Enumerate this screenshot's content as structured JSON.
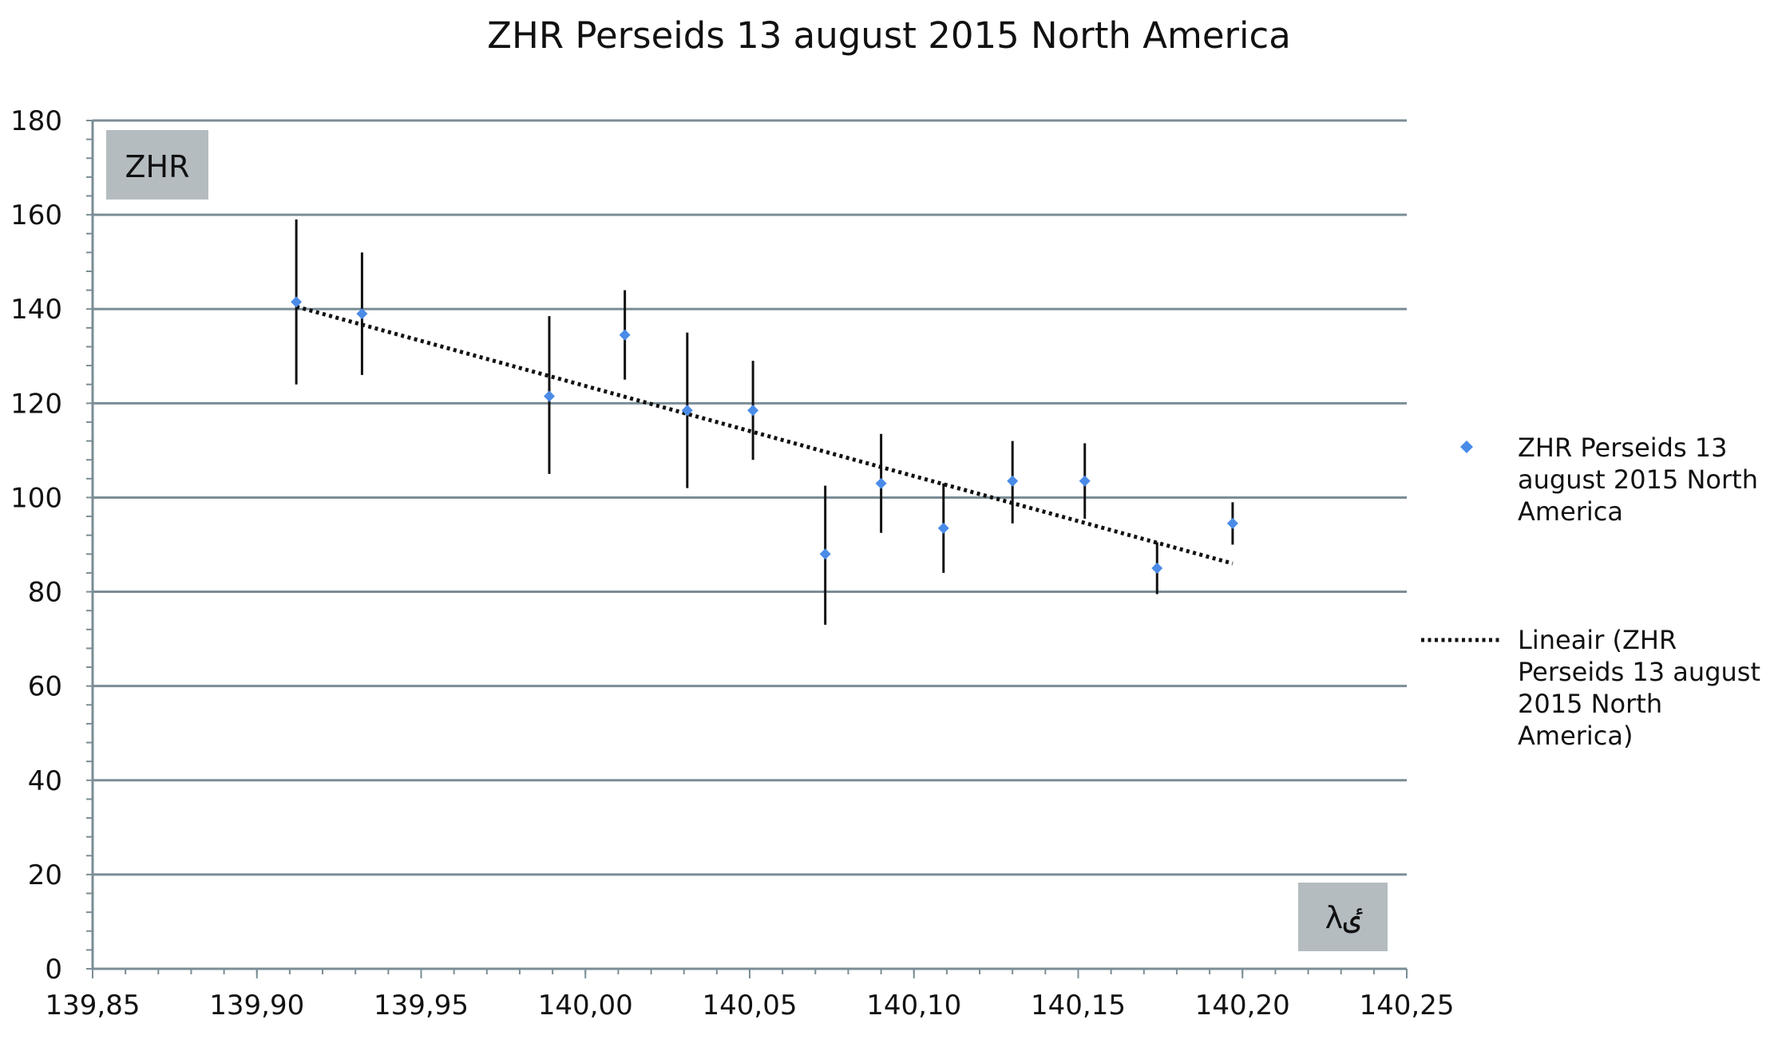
{
  "chart_data": {
    "type": "scatter",
    "title": "ZHR Perseids 13 august 2015 North America",
    "ylabel": "ZHR",
    "xlabel": "λٸ",
    "xlim": [
      139.85,
      140.25
    ],
    "ylim": [
      0,
      180
    ],
    "x_ticks": [
      "139,85",
      "139,90",
      "139,95",
      "140,00",
      "140,05",
      "140,10",
      "140,15",
      "140,20",
      "140,25"
    ],
    "y_ticks": [
      "0",
      "20",
      "40",
      "60",
      "80",
      "100",
      "120",
      "140",
      "160",
      "180"
    ],
    "grid": "horizontal",
    "legend_position": "right",
    "series": [
      {
        "name": "ZHR Perseids 13 august 2015 North America",
        "marker": "diamond",
        "color": "#4a8be8",
        "points": [
          {
            "x": 139.912,
            "y": 141.5,
            "err_low": 124.0,
            "err_high": 159.0
          },
          {
            "x": 139.932,
            "y": 139.0,
            "err_low": 126.0,
            "err_high": 152.0
          },
          {
            "x": 139.989,
            "y": 121.5,
            "err_low": 105.0,
            "err_high": 138.5
          },
          {
            "x": 140.012,
            "y": 134.5,
            "err_low": 125.0,
            "err_high": 144.0
          },
          {
            "x": 140.031,
            "y": 118.5,
            "err_low": 102.0,
            "err_high": 135.0
          },
          {
            "x": 140.051,
            "y": 118.5,
            "err_low": 108.0,
            "err_high": 129.0
          },
          {
            "x": 140.073,
            "y": 88.0,
            "err_low": 73.0,
            "err_high": 102.5
          },
          {
            "x": 140.09,
            "y": 103.0,
            "err_low": 92.5,
            "err_high": 113.5
          },
          {
            "x": 140.109,
            "y": 93.5,
            "err_low": 84.0,
            "err_high": 103.0
          },
          {
            "x": 140.13,
            "y": 103.5,
            "err_low": 94.5,
            "err_high": 112.0
          },
          {
            "x": 140.152,
            "y": 103.5,
            "err_low": 95.5,
            "err_high": 111.5
          },
          {
            "x": 140.174,
            "y": 85.0,
            "err_low": 79.5,
            "err_high": 90.5
          },
          {
            "x": 140.197,
            "y": 94.5,
            "err_low": 90.0,
            "err_high": 99.0
          }
        ]
      },
      {
        "name": "Lineair (ZHR Perseids 13 august 2015 North America)",
        "type": "trendline",
        "style": "dotted",
        "color": "#111111",
        "x": [
          139.912,
          140.197
        ],
        "y": [
          140.5,
          86.0
        ]
      }
    ]
  },
  "legend": {
    "series_label_lines": [
      "ZHR Perseids 13",
      "august 2015 North",
      "America"
    ],
    "trend_label_lines": [
      "Lineair (ZHR",
      "Perseids 13 august",
      "2015 North",
      "America)"
    ]
  },
  "colors": {
    "grid": "#7b8d96",
    "box_fill": "#b4bcc0",
    "marker": "#4a8be8",
    "error_bar": "#111111"
  }
}
